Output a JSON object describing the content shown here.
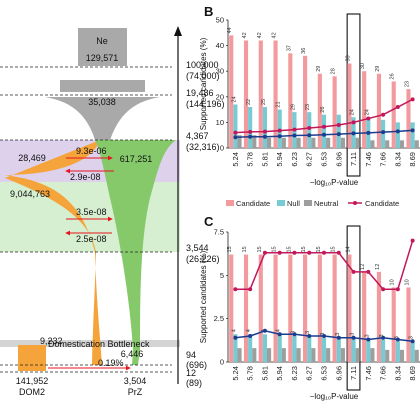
{
  "colors": {
    "ne_gray": "#a9a9a9",
    "dom_orange": "#f4a43a",
    "prz_green": "#86c96a",
    "band_purple": "#ddd1ec",
    "band_green": "#d5efd0",
    "migration_red": "#e8141e",
    "bar_candidate": "#f39a9e",
    "bar_null": "#77cbd2",
    "bar_neutral": "#9e9e9e",
    "line_candidate": "#c2185b",
    "line_null": "#1a3d8f"
  },
  "demography": {
    "ne_label": "Ne",
    "ne_value": "129,571",
    "ancestral_mid": "35,038",
    "dom_top": "28,469",
    "dom_mid": "9,044,763",
    "prz_top": "617,251",
    "bottleneck_label": "Domestication Bottleneck",
    "bottleneck_value": "9,232",
    "dom_bottom": "141,952",
    "prz_bottom": "3,504",
    "prz_mid": "6,446",
    "dom_name": "DOM2",
    "prz_name": "PrZ",
    "migrations": [
      "9.3e-06",
      "2.9e-08",
      "3.5e-08",
      "2.5e-08",
      "0.19%"
    ],
    "time_labels": [
      {
        "main": "100,000",
        "sub": "(74,000)"
      },
      {
        "main": "19,486",
        "sub": "(144,196)"
      },
      {
        "main": "4,367",
        "sub": "(32,316)"
      },
      {
        "main": "3,544",
        "sub": "(26,226)"
      },
      {
        "main": "94",
        "sub": "(696)"
      },
      {
        "main": "12",
        "sub": "(89)"
      }
    ]
  },
  "legend": {
    "candidate": "Candidate",
    "null": "Null",
    "neutral": "Neutral",
    "candidate_line": "Candidate"
  },
  "chart_data": [
    {
      "panel": "B",
      "type": "bar",
      "ylabel": "Supported candidates (%)",
      "xlabel": "−log₁₀P-value",
      "ylim": [
        0,
        50
      ],
      "yticks": [
        0,
        10,
        20,
        30,
        40,
        50
      ],
      "categories": [
        "5.24",
        "5.78",
        "5.81",
        "5.94",
        "6.23",
        "6.27",
        "6.53",
        "6.96",
        "7.11",
        "7.46",
        "7.66",
        "8.34",
        "8.69"
      ],
      "series": [
        {
          "name": "Candidate",
          "values": [
            44,
            42,
            42,
            42,
            37,
            36,
            29,
            28,
            33,
            30,
            29,
            26,
            23
          ]
        },
        {
          "name": "Null",
          "values": [
            17,
            16,
            16,
            15,
            14,
            14,
            13,
            13,
            12,
            12,
            11,
            10,
            10
          ]
        },
        {
          "name": "Neutral",
          "values": [
            5,
            5,
            4,
            4,
            4,
            4,
            4,
            4,
            4,
            3,
            3,
            3,
            3
          ]
        }
      ],
      "bar_labels": {
        "Candidate": [
          "44",
          "42",
          "42",
          "42",
          "37",
          "36",
          "29",
          "28",
          "33",
          "30",
          "29",
          "26",
          "23"
        ],
        "Null": [
          "24",
          "22",
          "25",
          "21",
          "29",
          "23",
          "26",
          "",
          "24",
          "24",
          "",
          "",
          ""
        ],
        "Neutral": [
          "",
          "",
          "",
          "",
          "",
          "",
          "",
          "",
          "",
          "",
          "",
          "",
          ""
        ]
      },
      "lines": [
        {
          "name": "Candidate",
          "values": [
            6,
            6.3,
            6.4,
            6.8,
            7.2,
            7.8,
            8.3,
            9,
            10,
            11.5,
            13,
            16,
            19
          ]
        },
        {
          "name": "Null",
          "values": [
            4.2,
            4.4,
            4.4,
            4.6,
            4.9,
            5,
            5.2,
            5.4,
            5.7,
            5.9,
            6.2,
            6.5,
            6.9
          ]
        }
      ],
      "highlight_category": "7.11"
    },
    {
      "panel": "C",
      "type": "bar",
      "ylabel": "Supported candidates (%)",
      "xlabel": "−log₁₀P-value",
      "ylim": [
        0,
        7.5
      ],
      "yticks": [
        0,
        2.5,
        5,
        7.5
      ],
      "categories": [
        "5.24",
        "5.78",
        "5.81",
        "5.94",
        "6.23",
        "6.27",
        "6.53",
        "6.96",
        "7.11",
        "7.46",
        "7.66",
        "8.34",
        "8.69"
      ],
      "series": [
        {
          "name": "Candidate",
          "values": [
            6.2,
            6.2,
            6.2,
            6.2,
            6.2,
            6.2,
            6.2,
            6.2,
            6.2,
            5.2,
            5.2,
            4.3,
            4.3
          ]
        },
        {
          "name": "Null",
          "values": [
            1.6,
            1.6,
            1.6,
            1.6,
            1.5,
            1.5,
            1.4,
            1.4,
            1.4,
            1.3,
            1.3,
            1.2,
            1.2
          ]
        },
        {
          "name": "Neutral",
          "values": [
            0.8,
            0.8,
            0.8,
            0.8,
            0.8,
            0.8,
            0.8,
            0.8,
            0.8,
            0.8,
            0.7,
            0.7,
            0.7
          ]
        }
      ],
      "bar_labels": {
        "Candidate": [
          "15",
          "15",
          "15",
          "15",
          "15",
          "15",
          "15",
          "15",
          "14",
          "12",
          "12",
          "10",
          "10"
        ],
        "Null": [
          "4",
          "4",
          "4",
          "4",
          "3",
          "3",
          "3",
          "3",
          "3",
          "3",
          "3",
          "3",
          "3"
        ],
        "Neutral": [
          "",
          "",
          "",
          "",
          "",
          "",
          "",
          "",
          "",
          "",
          "",
          "",
          ""
        ]
      },
      "lines": [
        {
          "name": "Candidate",
          "values": [
            4.2,
            4.2,
            6.3,
            6.3,
            6.3,
            6.3,
            6.3,
            6.3,
            5.2,
            5.2,
            4.2,
            4.2,
            7
          ]
        },
        {
          "name": "Null",
          "values": [
            1.4,
            1.5,
            1.8,
            1.6,
            1.6,
            1.5,
            1.5,
            1.4,
            1.4,
            1.3,
            1.4,
            1.3,
            1.2
          ]
        }
      ],
      "highlight_category": "7.11"
    }
  ]
}
